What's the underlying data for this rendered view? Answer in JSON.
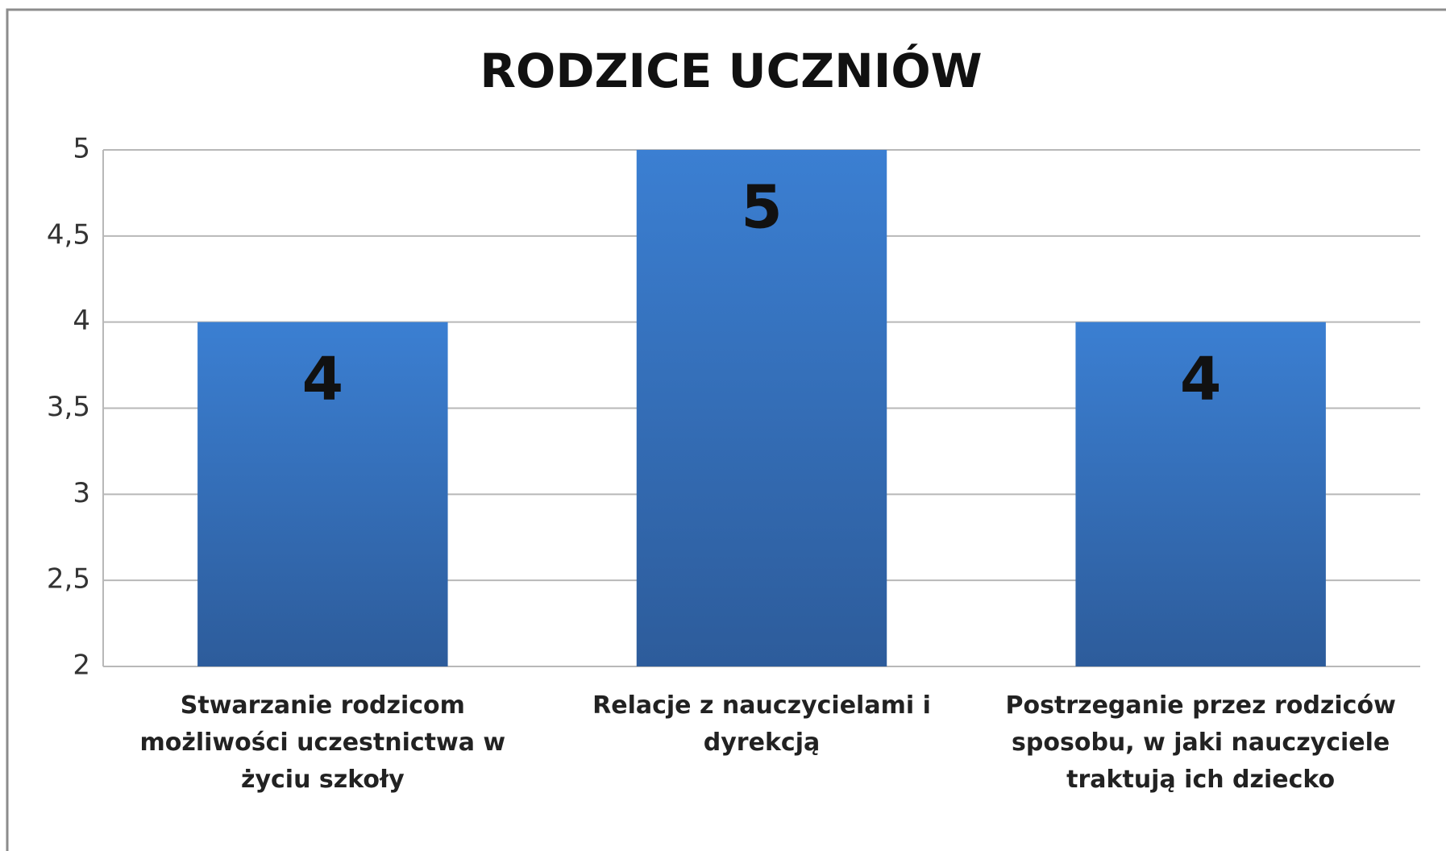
{
  "chart_data": {
    "type": "bar",
    "title": "RODZICE UCZNIÓW",
    "categories": [
      "Stwarzanie rodzicom możliwości uczestnictwa w życiu szkoły",
      "Relacje z nauczycielami i dyrekcją",
      "Postrzeganie przez rodziców sposobu, w jaki nauczyciele traktują ich dziecko"
    ],
    "values": [
      4,
      5,
      4
    ],
    "color": "#3570bd",
    "ylim": [
      2,
      5
    ],
    "yticks": [
      2,
      {
        "value": 2.5,
        "label": "2,5"
      },
      3,
      {
        "value": 3.5,
        "label": "3,5"
      },
      4,
      {
        "value": 4.5,
        "label": "4,5"
      },
      5
    ],
    "grid": true
  }
}
